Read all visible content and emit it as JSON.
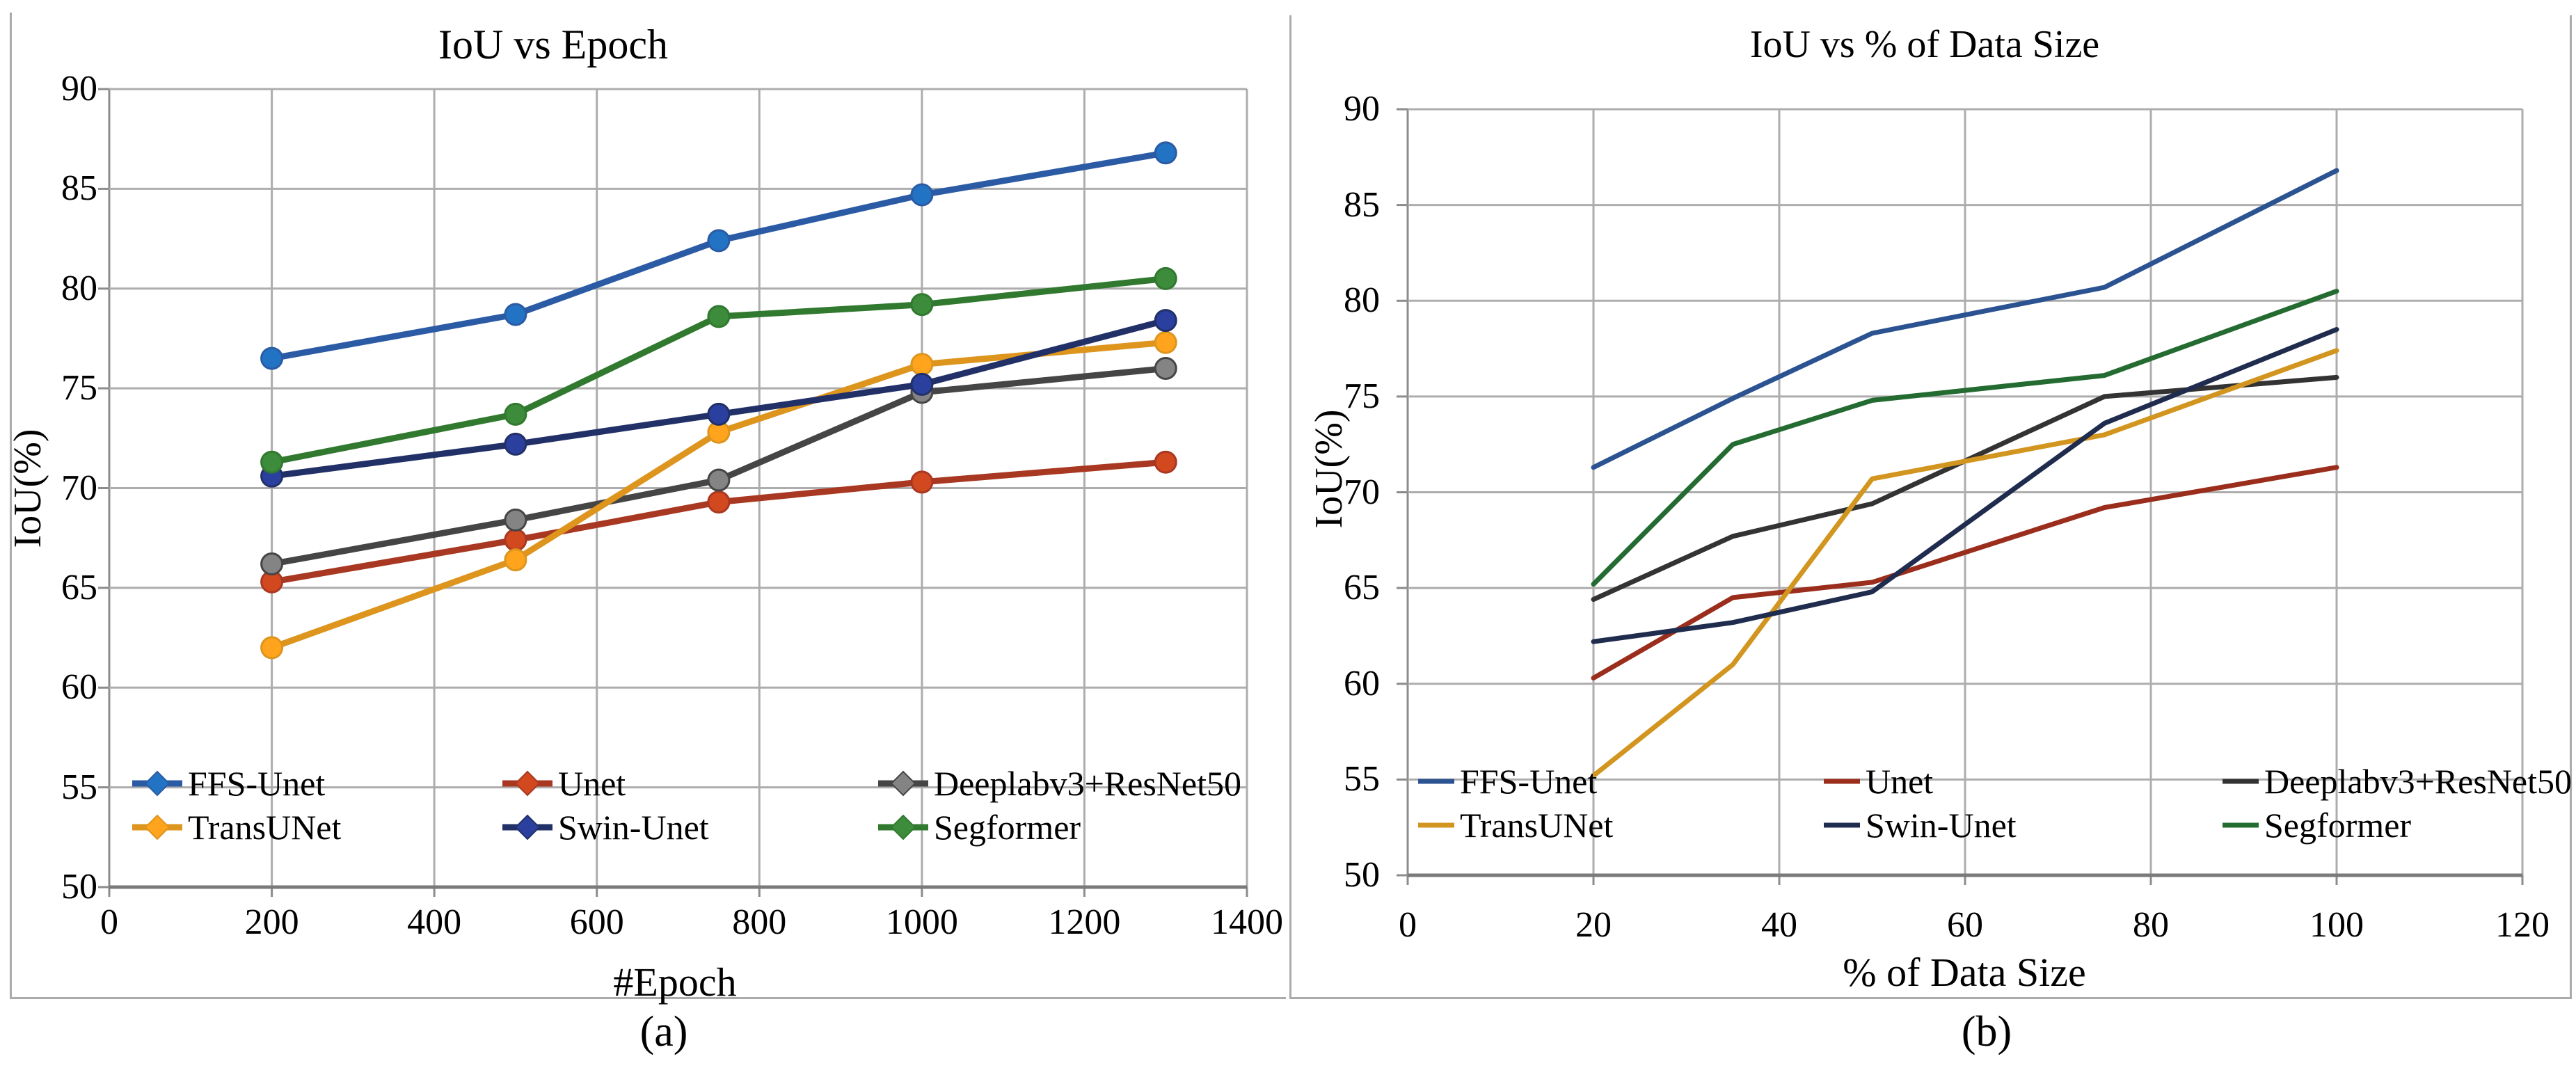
{
  "chart_data": [
    {
      "id": "a",
      "type": "line",
      "title": "IoU vs Epoch",
      "caption": "(a)",
      "xlabel": "#Epoch",
      "ylabel": "IoU(%)",
      "xlim": [
        0,
        1400
      ],
      "ylim": [
        50,
        90
      ],
      "x_ticks": [
        0,
        200,
        400,
        600,
        800,
        1000,
        1200,
        1400
      ],
      "y_ticks": [
        90,
        85,
        80,
        75,
        70,
        65,
        60,
        55,
        50
      ],
      "grid": "on",
      "legend_position": "inside-bottom-left, 2 rows x 3 columns",
      "markers": true,
      "x": [
        200,
        500,
        750,
        1000,
        1300
      ],
      "series": [
        {
          "name": "FFS-Unet",
          "color": "#2B5BA4",
          "marker": "#2273C4",
          "values": [
            76.5,
            78.7,
            82.4,
            84.7,
            86.8
          ]
        },
        {
          "name": "Unet",
          "color": "#A93822",
          "marker": "#D2481F",
          "values": [
            65.3,
            67.4,
            69.3,
            70.3,
            71.3
          ]
        },
        {
          "name": "Deeplabv3+ResNet50",
          "color": "#454545",
          "marker": "#848484",
          "values": [
            66.2,
            68.4,
            70.4,
            74.8,
            76.0
          ]
        },
        {
          "name": "TransUNet",
          "color": "#DD951E",
          "marker": "#FFA41C",
          "values": [
            62.0,
            66.4,
            72.8,
            76.2,
            77.3
          ]
        },
        {
          "name": "Swin-Unet",
          "color": "#223068",
          "marker": "#2A3F9E",
          "values": [
            70.6,
            72.2,
            73.7,
            75.2,
            78.4
          ]
        },
        {
          "name": "Segformer",
          "color": "#31792F",
          "marker": "#3C8C3C",
          "values": [
            71.3,
            73.7,
            78.6,
            79.2,
            80.5
          ]
        }
      ],
      "legend_rows": [
        [
          0,
          1,
          2
        ],
        [
          3,
          4,
          5
        ]
      ]
    },
    {
      "id": "b",
      "type": "line",
      "title": "IoU vs % of Data Size",
      "caption": "(b)",
      "xlabel": "% of Data Size",
      "ylabel": "IoU(%)",
      "xlim": [
        0,
        120
      ],
      "ylim": [
        50,
        90
      ],
      "x_ticks": [
        0,
        20,
        40,
        60,
        80,
        100,
        120
      ],
      "y_ticks": [
        90,
        85,
        80,
        75,
        70,
        65,
        60,
        55,
        50
      ],
      "grid": "on",
      "legend_position": "inside-bottom-left, 2 rows x 3 columns",
      "markers": false,
      "x": [
        20,
        35,
        50,
        75,
        100
      ],
      "series": [
        {
          "name": "FFS-Unet",
          "color": "#2B5291",
          "marker": "#2B5291",
          "values": [
            71.3,
            74.9,
            78.3,
            80.7,
            86.8
          ]
        },
        {
          "name": "Unet",
          "color": "#9A2D1C",
          "marker": "#9A2D1C",
          "values": [
            60.3,
            64.5,
            65.3,
            69.2,
            71.3
          ]
        },
        {
          "name": "Deeplabv3+ResNet50",
          "color": "#333333",
          "marker": "#333333",
          "values": [
            64.4,
            67.7,
            69.4,
            75.0,
            76.0
          ]
        },
        {
          "name": "TransUNet",
          "color": "#D2951F",
          "marker": "#D2951F",
          "values": [
            55.2,
            61.0,
            70.7,
            73.0,
            77.4
          ]
        },
        {
          "name": "Swin-Unet",
          "color": "#202C4E",
          "marker": "#202C4E",
          "values": [
            62.2,
            63.2,
            64.8,
            73.6,
            78.5
          ]
        },
        {
          "name": "Segformer",
          "color": "#236B31",
          "marker": "#236B31",
          "values": [
            65.2,
            72.5,
            74.8,
            76.1,
            80.5
          ]
        }
      ],
      "legend_rows": [
        [
          0,
          1,
          2
        ],
        [
          3,
          4,
          5
        ]
      ]
    }
  ],
  "styles": {
    "gridline_color": "#ADADAD",
    "y_axis_color": "#8C8C8C",
    "x_axis_color": "#7A7A7A",
    "panel_border_color": "#ABABAB",
    "text_color": "#000000"
  }
}
